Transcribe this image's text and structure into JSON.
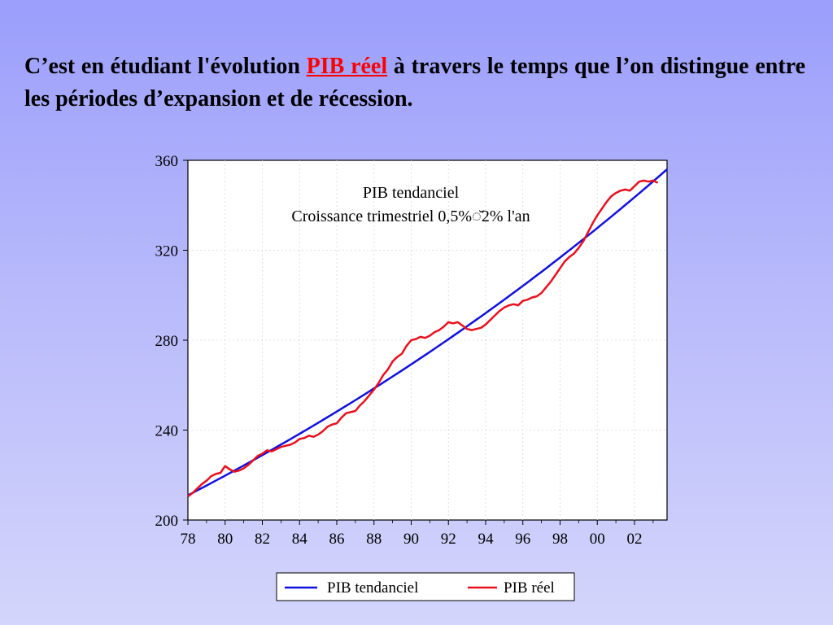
{
  "slide": {
    "title_before": "C’est en étudiant l'évolution ",
    "title_highlight": "PIB réel",
    "title_after": " à travers le temps que l’on distingue entre les périodes d’expansion et de récession.",
    "highlight_color": "#ff0000"
  },
  "chart_data": {
    "type": "line",
    "ylim": [
      200,
      360
    ],
    "xlim": [
      1978,
      2003.75
    ],
    "y_ticks": [
      "200",
      "240",
      "280",
      "320",
      "360"
    ],
    "x_ticks": [
      "78",
      "80",
      "82",
      "84",
      "86",
      "88",
      "90",
      "92",
      "94",
      "96",
      "98",
      "00",
      "02"
    ],
    "grid": true,
    "legend_position": "bottom",
    "annotation": {
      "line1": "PIB tendanciel",
      "line2": "Croissance trimestriel 0,5%◌̆2% l'an"
    },
    "series": [
      {
        "name": "PIB tendanciel",
        "color": "#1010e0",
        "kind": "trend",
        "start": [
          1978,
          211
        ],
        "end": [
          2003.75,
          356
        ],
        "quarterly_growth_pct": 0.5
      },
      {
        "name": "PIB réel",
        "color": "#e8101e",
        "points": [
          [
            1978.0,
            210.5
          ],
          [
            1978.25,
            212
          ],
          [
            1978.5,
            214
          ],
          [
            1978.75,
            216
          ],
          [
            1979.0,
            217.5
          ],
          [
            1979.25,
            219.5
          ],
          [
            1979.5,
            220.5
          ],
          [
            1979.75,
            221
          ],
          [
            1980.0,
            224
          ],
          [
            1980.25,
            222.5
          ],
          [
            1980.5,
            221.5
          ],
          [
            1980.75,
            222
          ],
          [
            1981.0,
            223
          ],
          [
            1981.25,
            224.5
          ],
          [
            1981.5,
            226.5
          ],
          [
            1981.75,
            228.5
          ],
          [
            1982.0,
            229.5
          ],
          [
            1982.25,
            231
          ],
          [
            1982.5,
            230.5
          ],
          [
            1982.75,
            231.5
          ],
          [
            1983.0,
            232.5
          ],
          [
            1983.25,
            233
          ],
          [
            1983.5,
            233.5
          ],
          [
            1983.75,
            234.5
          ],
          [
            1984.0,
            236
          ],
          [
            1984.25,
            236.5
          ],
          [
            1984.5,
            237.5
          ],
          [
            1984.75,
            237
          ],
          [
            1985.0,
            238
          ],
          [
            1985.25,
            239.5
          ],
          [
            1985.5,
            241.5
          ],
          [
            1985.75,
            242.5
          ],
          [
            1986.0,
            243
          ],
          [
            1986.25,
            245.5
          ],
          [
            1986.5,
            247.5
          ],
          [
            1986.75,
            248
          ],
          [
            1987.0,
            248.5
          ],
          [
            1987.25,
            251
          ],
          [
            1987.5,
            253
          ],
          [
            1987.75,
            255.5
          ],
          [
            1988.0,
            258
          ],
          [
            1988.25,
            261
          ],
          [
            1988.5,
            264.5
          ],
          [
            1988.75,
            267
          ],
          [
            1989.0,
            270.5
          ],
          [
            1989.25,
            272.5
          ],
          [
            1989.5,
            274
          ],
          [
            1989.75,
            277.5
          ],
          [
            1990.0,
            280
          ],
          [
            1990.25,
            280.5
          ],
          [
            1990.5,
            281.5
          ],
          [
            1990.75,
            281
          ],
          [
            1991.0,
            282
          ],
          [
            1991.25,
            283.5
          ],
          [
            1991.5,
            284.5
          ],
          [
            1991.75,
            286
          ],
          [
            1992.0,
            288
          ],
          [
            1992.25,
            287.5
          ],
          [
            1992.5,
            288
          ],
          [
            1992.75,
            286.5
          ],
          [
            1993.0,
            285
          ],
          [
            1993.25,
            284.5
          ],
          [
            1993.5,
            285
          ],
          [
            1993.75,
            285.5
          ],
          [
            1994.0,
            287
          ],
          [
            1994.25,
            289
          ],
          [
            1994.5,
            291
          ],
          [
            1994.75,
            293
          ],
          [
            1995.0,
            294.5
          ],
          [
            1995.25,
            295.5
          ],
          [
            1995.5,
            296
          ],
          [
            1995.75,
            295.5
          ],
          [
            1996.0,
            297.5
          ],
          [
            1996.25,
            298
          ],
          [
            1996.5,
            299
          ],
          [
            1996.75,
            299.5
          ],
          [
            1997.0,
            301
          ],
          [
            1997.25,
            303.5
          ],
          [
            1997.5,
            306
          ],
          [
            1997.75,
            309
          ],
          [
            1998.0,
            312
          ],
          [
            1998.25,
            315
          ],
          [
            1998.5,
            317
          ],
          [
            1998.75,
            318.5
          ],
          [
            1999.0,
            321
          ],
          [
            1999.25,
            324
          ],
          [
            1999.5,
            328
          ],
          [
            1999.75,
            332
          ],
          [
            2000.0,
            335.5
          ],
          [
            2000.25,
            338.5
          ],
          [
            2000.5,
            341.5
          ],
          [
            2000.75,
            344
          ],
          [
            2001.0,
            345.5
          ],
          [
            2001.25,
            346.5
          ],
          [
            2001.5,
            347
          ],
          [
            2001.75,
            346.5
          ],
          [
            2002.0,
            348.5
          ],
          [
            2002.25,
            350.5
          ],
          [
            2002.5,
            351
          ],
          [
            2002.75,
            350.5
          ],
          [
            2003.0,
            351
          ],
          [
            2003.25,
            350
          ]
        ]
      }
    ]
  }
}
